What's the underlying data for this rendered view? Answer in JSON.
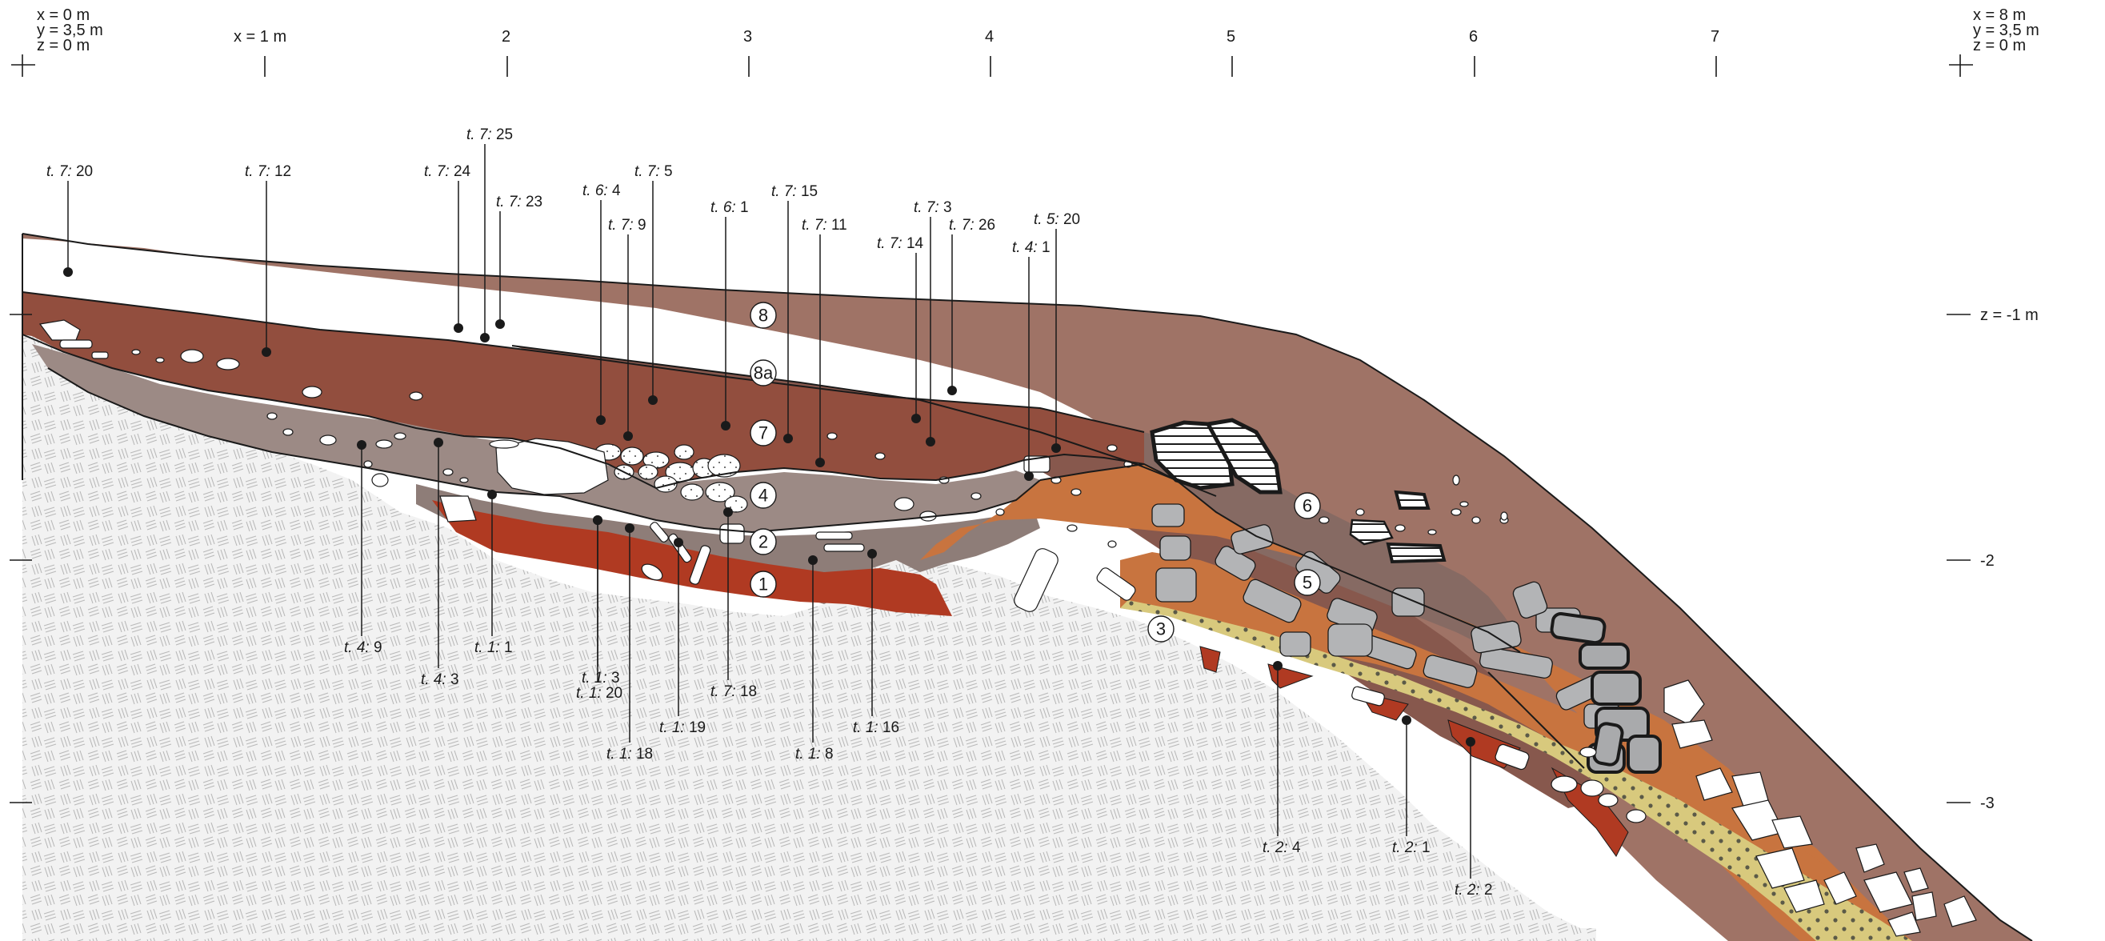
{
  "colors": {
    "layer_8": "#9f7366",
    "layer_8a": "#87584d",
    "layer_7": "#924e3e",
    "layer_6": "#866a63",
    "layer_5": "#c8743f",
    "layer_4": "#9c8a85",
    "layer_3": "#d8c97d",
    "layer_2": "#8e7d78",
    "layer_1": "#b03a22",
    "bedrock_hatch": "#c8c8c8",
    "grey_stone": "#b3b4b6"
  },
  "icons": {
    "corner_marker": "crosshair-icon"
  },
  "corners": {
    "left": {
      "line1": "x = 0 m",
      "line2": "y = 3,5 m",
      "line3": "z = 0 m"
    },
    "right": {
      "line1": "x = 8 m",
      "line2": "y = 3,5 m",
      "line3": "z = 0 m"
    }
  },
  "x_axis": {
    "labels": [
      "x = 1 m",
      "2",
      "3",
      "4",
      "5",
      "6",
      "7"
    ]
  },
  "z_axis": {
    "labels": [
      "z = -1 m",
      "-2",
      "-3"
    ]
  },
  "layers": [
    "8",
    "8a",
    "7",
    "4",
    "6",
    "2",
    "5",
    "1",
    "3"
  ],
  "finds": [
    {
      "tomb": "t. 7:",
      "no": "20"
    },
    {
      "tomb": "t. 7:",
      "no": "12"
    },
    {
      "tomb": "t. 7:",
      "no": "24"
    },
    {
      "tomb": "t. 7:",
      "no": "25"
    },
    {
      "tomb": "t. 7:",
      "no": "23"
    },
    {
      "tomb": "t. 6:",
      "no": "4"
    },
    {
      "tomb": "t. 7:",
      "no": "5"
    },
    {
      "tomb": "t. 7:",
      "no": "9"
    },
    {
      "tomb": "t. 6:",
      "no": "1"
    },
    {
      "tomb": "t. 7:",
      "no": "15"
    },
    {
      "tomb": "t. 7:",
      "no": "11"
    },
    {
      "tomb": "t. 7:",
      "no": "3"
    },
    {
      "tomb": "t. 7:",
      "no": "14"
    },
    {
      "tomb": "t. 7:",
      "no": "26"
    },
    {
      "tomb": "t. 4:",
      "no": "1"
    },
    {
      "tomb": "t. 5:",
      "no": "20"
    },
    {
      "tomb": "t. 4:",
      "no": "9"
    },
    {
      "tomb": "t. 4:",
      "no": "3"
    },
    {
      "tomb": "t. 1:",
      "no": "1"
    },
    {
      "tomb": "t. 1:",
      "no": "3"
    },
    {
      "tomb": "t. 1:",
      "no": "20"
    },
    {
      "tomb": "t. 1:",
      "no": "18"
    },
    {
      "tomb": "t. 1:",
      "no": "19"
    },
    {
      "tomb": "t. 7:",
      "no": "18"
    },
    {
      "tomb": "t. 1:",
      "no": "8"
    },
    {
      "tomb": "t. 1:",
      "no": "16"
    },
    {
      "tomb": "t. 2:",
      "no": "4"
    },
    {
      "tomb": "t. 2:",
      "no": "1"
    },
    {
      "tomb": "t. 2:",
      "no": "2"
    }
  ]
}
